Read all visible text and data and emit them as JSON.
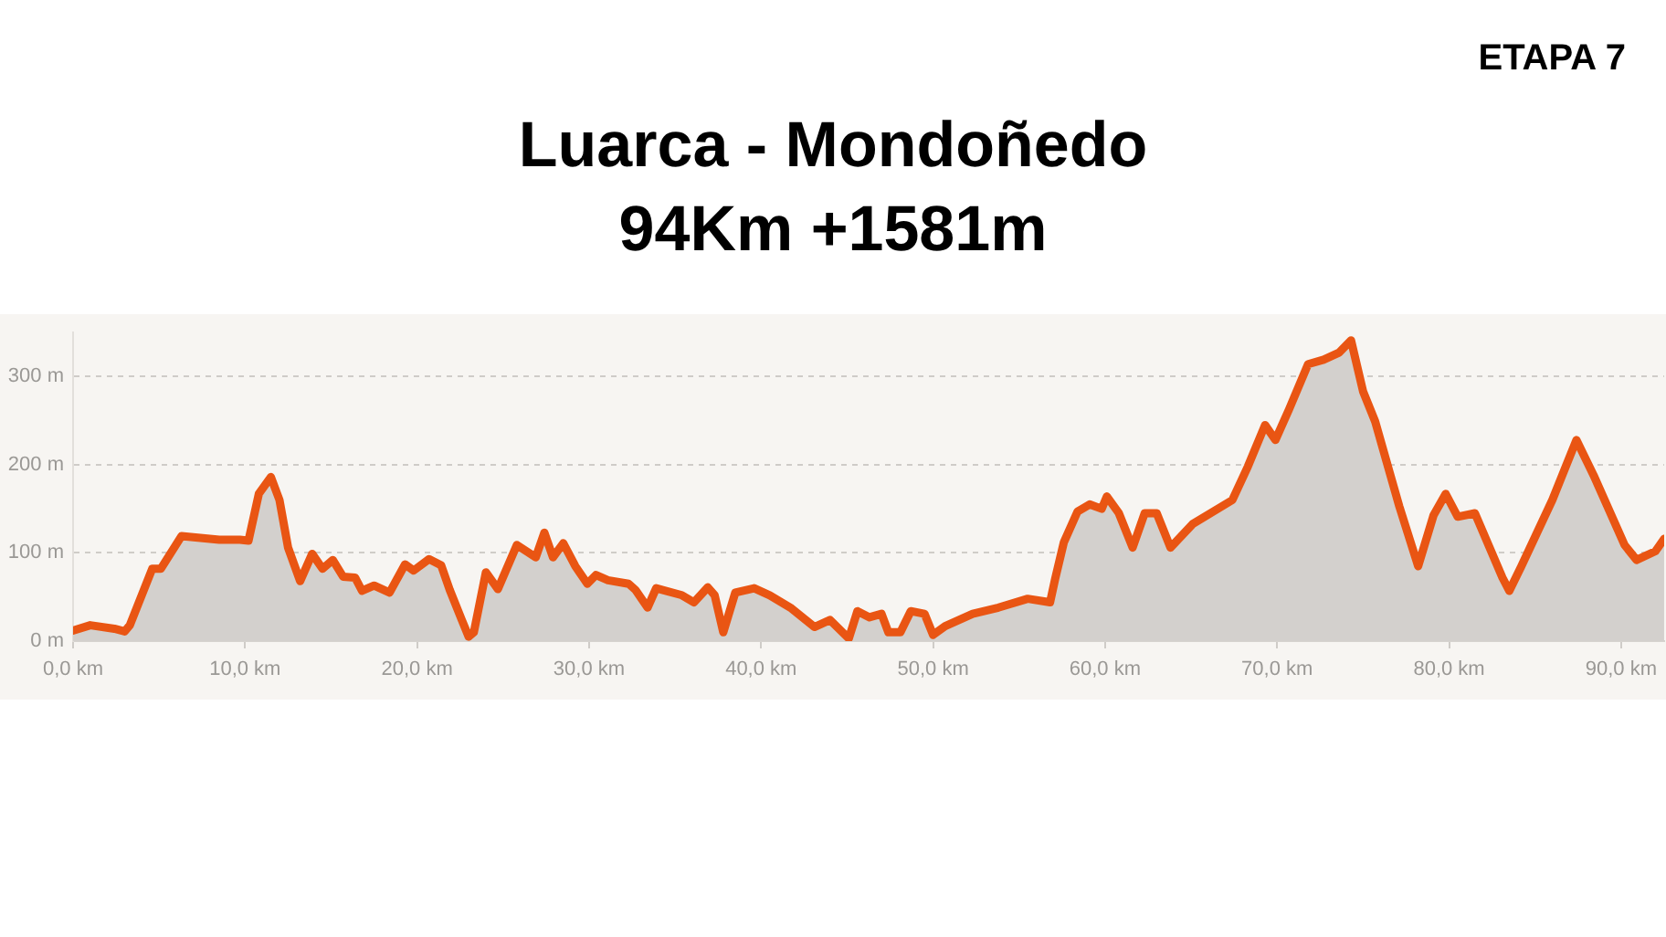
{
  "chart_data": {
    "type": "area",
    "title": "Luarca - Mondoñedo",
    "subtitle": "94Km +1581m",
    "annotations": [
      "ETAPA 7"
    ],
    "x": [
      0,
      1.0,
      2.4,
      3.0,
      3.3,
      4.6,
      5.1,
      6.3,
      7.4,
      8.5,
      9.7,
      10.2,
      10.8,
      11.5,
      12.0,
      12.5,
      13.2,
      13.9,
      14.5,
      15.1,
      15.7,
      16.4,
      16.8,
      17.5,
      18.4,
      19.3,
      19.8,
      20.7,
      21.4,
      21.9,
      22.6,
      23.0,
      23.3,
      24.0,
      24.7,
      25.8,
      26.9,
      27.4,
      27.9,
      28.5,
      29.2,
      29.9,
      30.4,
      31.1,
      32.3,
      32.7,
      33.4,
      33.9,
      35.4,
      36.1,
      36.9,
      37.3,
      37.8,
      38.5,
      39.6,
      40.5,
      41.7,
      43.1,
      44.0,
      45.1,
      45.6,
      46.3,
      47.0,
      47.4,
      48.1,
      48.7,
      49.5,
      50.0,
      50.7,
      52.3,
      53.8,
      55.5,
      56.8,
      57.1,
      57.6,
      58.4,
      59.1,
      59.8,
      60.1,
      60.8,
      61.6,
      62.3,
      63.0,
      63.8,
      65.1,
      67.4,
      68.3,
      69.3,
      69.9,
      70.7,
      71.8,
      72.7,
      73.6,
      74.3,
      75.0,
      75.7,
      77.1,
      78.2,
      79.1,
      79.8,
      80.5,
      81.5,
      83.1,
      83.5,
      84.2,
      86.0,
      87.4,
      88.4,
      90.2,
      90.9,
      92.0,
      92.5
    ],
    "series": [
      {
        "color": "#e95513",
        "values": [
          12,
          18,
          14,
          11,
          18,
          82,
          82,
          119,
          117,
          115,
          115,
          114,
          167,
          186,
          160,
          106,
          68,
          99,
          82,
          92,
          73,
          72,
          57,
          63,
          55,
          87,
          80,
          93,
          86,
          58,
          24,
          5,
          10,
          78,
          59,
          109,
          95,
          123,
          95,
          111,
          85,
          65,
          75,
          69,
          65,
          58,
          38,
          60,
          52,
          44,
          61,
          52,
          10,
          55,
          60,
          52,
          38,
          16,
          24,
          3,
          34,
          27,
          31,
          10,
          10,
          34,
          31,
          7,
          17,
          31,
          38,
          48,
          44,
          71,
          112,
          147,
          155,
          150,
          164,
          145,
          106,
          145,
          145,
          106,
          133,
          160,
          198,
          245,
          228,
          263,
          314,
          319,
          327,
          341,
          283,
          249,
          153,
          85,
          143,
          167,
          141,
          145,
          72,
          57,
          85,
          160,
          228,
          188,
          109,
          92,
          102,
          116
        ]
      }
    ],
    "xlim": [
      0,
      92.5
    ],
    "xticks": [
      {
        "value": 0,
        "label": "0,0 km"
      },
      {
        "value": 10,
        "label": "10,0 km"
      },
      {
        "value": 20,
        "label": "20,0 km"
      },
      {
        "value": 30,
        "label": "30,0 km"
      },
      {
        "value": 40,
        "label": "40,0 km"
      },
      {
        "value": 50,
        "label": "50,0 km"
      },
      {
        "value": 60,
        "label": "60,0 km"
      },
      {
        "value": 70,
        "label": "70,0 km"
      },
      {
        "value": 80,
        "label": "80,0 km"
      },
      {
        "value": 90,
        "label": "90,0 km"
      }
    ],
    "ylim": [
      0,
      350
    ],
    "yticks": [
      {
        "value": 0,
        "label": "0 m"
      },
      {
        "value": 100,
        "label": "100 m"
      },
      {
        "value": 200,
        "label": "200 m"
      },
      {
        "value": 300,
        "label": "300 m"
      }
    ],
    "grid": "y"
  }
}
